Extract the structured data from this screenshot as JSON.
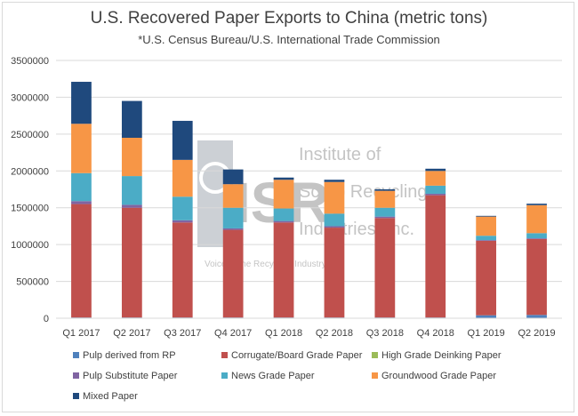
{
  "chart_data": {
    "type": "bar",
    "stacked": true,
    "title": "U.S. Recovered Paper Exports to China (metric tons)",
    "subtitle": "*U.S. Census Bureau/U.S. International Trade Commission",
    "xlabel": "",
    "ylabel": "",
    "ylim": [
      0,
      3500000
    ],
    "yticks": [
      0,
      500000,
      1000000,
      1500000,
      2000000,
      2500000,
      3000000,
      3500000
    ],
    "ytick_labels": [
      "0",
      "500000",
      "1000000",
      "1500000",
      "2000000",
      "2500000",
      "3000000",
      "3500000"
    ],
    "grid": true,
    "legend_position": "bottom",
    "categories": [
      "Q1 2017",
      "Q2 2017",
      "Q3 2017",
      "Q4 2017",
      "Q1 2018",
      "Q2 2018",
      "Q3 2018",
      "Q4 2018",
      "Q1 2019",
      "Q2 2019"
    ],
    "series": [
      {
        "name": "Pulp derived from RP",
        "color": "#4f81bd",
        "values": [
          10000,
          10000,
          10000,
          10000,
          10000,
          10000,
          10000,
          10000,
          40000,
          45000
        ]
      },
      {
        "name": "Corrugate/Board Grade Paper",
        "color": "#c0504d",
        "values": [
          1540000,
          1490000,
          1290000,
          1190000,
          1290000,
          1220000,
          1350000,
          1660000,
          1010000,
          1030000
        ]
      },
      {
        "name": "High Grade Deinking Paper",
        "color": "#9bbb59",
        "values": [
          0,
          0,
          0,
          0,
          0,
          0,
          0,
          0,
          0,
          0
        ]
      },
      {
        "name": "Pulp Substitute Paper",
        "color": "#8064a2",
        "values": [
          40000,
          40000,
          30000,
          20000,
          20000,
          20000,
          20000,
          20000,
          10000,
          10000
        ]
      },
      {
        "name": "News Grade Paper",
        "color": "#4bacc6",
        "values": [
          380000,
          390000,
          320000,
          280000,
          170000,
          170000,
          120000,
          110000,
          60000,
          70000
        ]
      },
      {
        "name": "Groundwood Grade Paper",
        "color": "#f79646",
        "values": [
          670000,
          520000,
          500000,
          320000,
          390000,
          430000,
          230000,
          200000,
          260000,
          380000
        ]
      },
      {
        "name": "Mixed Paper",
        "color": "#1f497d",
        "values": [
          570000,
          500000,
          530000,
          200000,
          30000,
          30000,
          20000,
          30000,
          10000,
          20000
        ]
      }
    ]
  },
  "watermark": {
    "logo_letters": "ISRI",
    "line1": "Institute of",
    "line2": "Scrap Recycling",
    "line3": "Industries, Inc.",
    "tagline": "Voice of the Recycling Industry"
  },
  "colors": {
    "axis": "#d9d9d9",
    "gridline": "#d9d9d9",
    "text": "#404040"
  }
}
